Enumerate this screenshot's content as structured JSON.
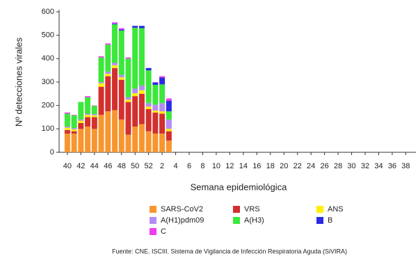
{
  "chart_data": {
    "type": "stacked_bar",
    "x_label": "Semana epidemiológica",
    "y_label": "Nº detecciones virales",
    "source": "Fuente: CNE. ISCIII. Sistema de Vigilancia de Infección Respiratoria Aguda (SiVIRA)",
    "categories": [
      "40",
      null,
      "42",
      null,
      "44",
      null,
      "46",
      null,
      "48",
      null,
      "50",
      null,
      "52",
      null,
      "2",
      null,
      "4",
      null,
      "6",
      null,
      "8",
      null,
      "10",
      null,
      "12",
      null,
      "14",
      null,
      "16",
      null,
      "18",
      null,
      "20",
      null,
      "22",
      null,
      "24",
      null,
      "26",
      null,
      "28",
      null,
      "30",
      null,
      "32",
      null,
      "34",
      null,
      "36",
      null,
      "38",
      null
    ],
    "ylim": [
      0,
      600
    ],
    "yticks": [
      0,
      100,
      200,
      300,
      400,
      500,
      600
    ],
    "series": [
      {
        "name": "SARS-CoV2",
        "color": "#f7962f",
        "values": [
          80,
          80,
          100,
          110,
          100,
          160,
          175,
          180,
          140,
          75,
          110,
          120,
          90,
          80,
          80,
          50,
          null,
          null,
          null,
          null,
          null,
          null,
          null,
          null,
          null,
          null,
          null,
          null,
          null,
          null,
          null,
          null,
          null,
          null,
          null,
          null,
          null,
          null,
          null,
          null,
          null,
          null,
          null,
          null,
          null,
          null,
          null,
          null,
          null,
          null,
          null,
          null
        ]
      },
      {
        "name": "VRS",
        "color": "#d32f2f",
        "values": [
          15,
          10,
          25,
          40,
          50,
          120,
          150,
          180,
          170,
          140,
          130,
          130,
          95,
          90,
          85,
          40,
          null,
          null,
          null,
          null,
          null,
          null,
          null,
          null,
          null,
          null,
          null,
          null,
          null,
          null,
          null,
          null,
          null,
          null,
          null,
          null,
          null,
          null,
          null,
          null,
          null,
          null,
          null,
          null,
          null,
          null,
          null,
          null,
          null,
          null,
          null,
          null
        ]
      },
      {
        "name": "ANS",
        "color": "#ffef00",
        "values": [
          10,
          8,
          10,
          10,
          8,
          15,
          10,
          12,
          10,
          10,
          12,
          15,
          10,
          8,
          10,
          10,
          null,
          null,
          null,
          null,
          null,
          null,
          null,
          null,
          null,
          null,
          null,
          null,
          null,
          null,
          null,
          null,
          null,
          null,
          null,
          null,
          null,
          null,
          null,
          null,
          null,
          null,
          null,
          null,
          null,
          null,
          null,
          null,
          null,
          null,
          null,
          null
        ]
      },
      {
        "name": "A(H1)pdm09",
        "color": "#b48cf2",
        "values": [
          5,
          5,
          5,
          5,
          5,
          5,
          10,
          10,
          10,
          10,
          20,
          20,
          15,
          25,
          35,
          40,
          null,
          null,
          null,
          null,
          null,
          null,
          null,
          null,
          null,
          null,
          null,
          null,
          null,
          null,
          null,
          null,
          null,
          null,
          null,
          null,
          null,
          null,
          null,
          null,
          null,
          null,
          null,
          null,
          null,
          null,
          null,
          null,
          null,
          null,
          null,
          null
        ]
      },
      {
        "name": "A(H3)",
        "color": "#3be83b",
        "values": [
          55,
          55,
          75,
          70,
          35,
          105,
          115,
          165,
          190,
          165,
          260,
          245,
          140,
          85,
          80,
          35,
          null,
          null,
          null,
          null,
          null,
          null,
          null,
          null,
          null,
          null,
          null,
          null,
          null,
          null,
          null,
          null,
          null,
          null,
          null,
          null,
          null,
          null,
          null,
          null,
          null,
          null,
          null,
          null,
          null,
          null,
          null,
          null,
          null,
          null,
          null,
          null
        ]
      },
      {
        "name": "B",
        "color": "#2a2ae6",
        "values": [
          0,
          0,
          0,
          0,
          0,
          0,
          0,
          3,
          5,
          0,
          8,
          10,
          10,
          10,
          30,
          45,
          null,
          null,
          null,
          null,
          null,
          null,
          null,
          null,
          null,
          null,
          null,
          null,
          null,
          null,
          null,
          null,
          null,
          null,
          null,
          null,
          null,
          null,
          null,
          null,
          null,
          null,
          null,
          null,
          null,
          null,
          null,
          null,
          null,
          null,
          null,
          null
        ]
      },
      {
        "name": "C",
        "color": "#ee3cee",
        "values": [
          5,
          2,
          0,
          5,
          2,
          5,
          5,
          5,
          5,
          5,
          0,
          0,
          0,
          2,
          5,
          10,
          null,
          null,
          null,
          null,
          null,
          null,
          null,
          null,
          null,
          null,
          null,
          null,
          null,
          null,
          null,
          null,
          null,
          null,
          null,
          null,
          null,
          null,
          null,
          null,
          null,
          null,
          null,
          null,
          null,
          null,
          null,
          null,
          null,
          null,
          null,
          null
        ]
      }
    ]
  }
}
